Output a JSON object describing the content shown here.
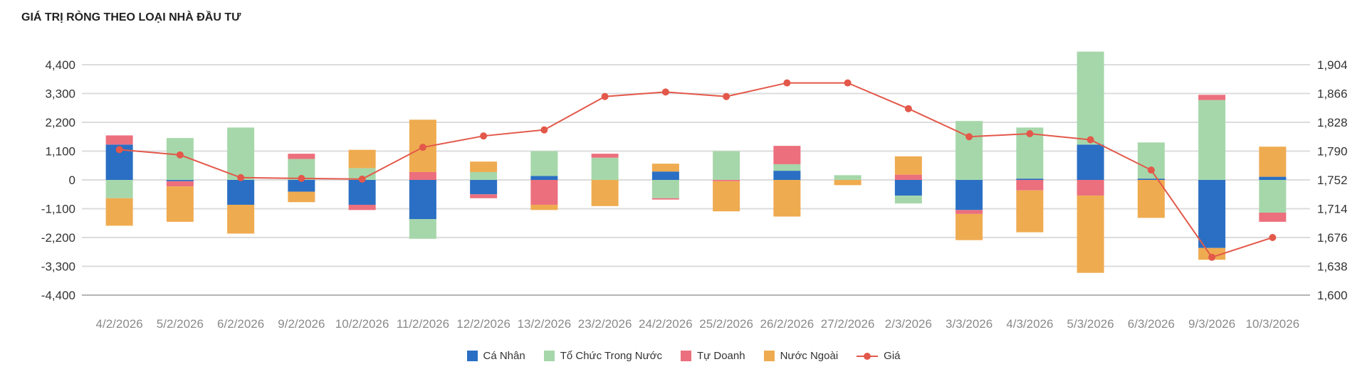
{
  "chart_data": {
    "type": "bar",
    "stacked": true,
    "title": "GIÁ TRỊ RÒNG THEO LOẠI NHÀ ĐẦU TƯ",
    "categories": [
      "4/2/2026",
      "5/2/2026",
      "6/2/2026",
      "9/2/2026",
      "10/2/2026",
      "11/2/2026",
      "12/2/2026",
      "13/2/2026",
      "23/2/2026",
      "24/2/2026",
      "25/2/2026",
      "26/2/2026",
      "27/2/2026",
      "2/3/2026",
      "3/3/2026",
      "4/3/2026",
      "5/3/2026",
      "6/3/2026",
      "9/3/2026",
      "10/3/2026"
    ],
    "series": [
      {
        "name": "Cá Nhân",
        "color": "#2a6fc4",
        "values": [
          1350,
          -50,
          -950,
          -450,
          -950,
          -1500,
          -550,
          150,
          0,
          320,
          0,
          350,
          0,
          -600,
          -1150,
          50,
          1350,
          50,
          -2600,
          120
        ]
      },
      {
        "name": "Tổ Chức Trong Nước",
        "color": "#a6d7aa",
        "values": [
          -700,
          1600,
          2000,
          800,
          450,
          -750,
          300,
          950,
          850,
          -700,
          1100,
          250,
          180,
          -300,
          2250,
          1950,
          3550,
          1380,
          3050,
          -1250
        ]
      },
      {
        "name": "Tự Doanh",
        "color": "#ec6f7d",
        "values": [
          350,
          -200,
          0,
          200,
          -200,
          300,
          -150,
          -950,
          150,
          -50,
          -50,
          700,
          0,
          200,
          -150,
          -400,
          -600,
          0,
          200,
          -350
        ]
      },
      {
        "name": "Nước Ngoài",
        "color": "#efab50",
        "values": [
          -1050,
          -1350,
          -1100,
          -400,
          700,
          2000,
          400,
          -200,
          -1000,
          300,
          -1150,
          -1400,
          -200,
          700,
          -1000,
          -1600,
          -2950,
          -1450,
          -450,
          1150
        ]
      }
    ],
    "line_series": {
      "name": "Giá",
      "color": "#e3584a",
      "axis": "right",
      "values": [
        1792,
        1785,
        1755,
        1754,
        1753,
        1795,
        1810,
        1818,
        1862,
        1868,
        1862,
        1880,
        1880,
        1846,
        1809,
        1813,
        1805,
        1765,
        1650,
        1676
      ]
    },
    "y_left": {
      "min": -4400,
      "max": 4400,
      "ticks": [
        "4,400",
        "3,300",
        "2,200",
        "1,100",
        "0",
        "-1,100",
        "-2,200",
        "-3,300",
        "-4,400"
      ]
    },
    "y_right": {
      "min": 1600,
      "max": 1904,
      "ticks": [
        "1,904",
        "1,866",
        "1,828",
        "1,790",
        "1,752",
        "1,714",
        "1,676",
        "1,638",
        "1,600"
      ]
    },
    "grid": true,
    "legend_position": "bottom-center"
  }
}
